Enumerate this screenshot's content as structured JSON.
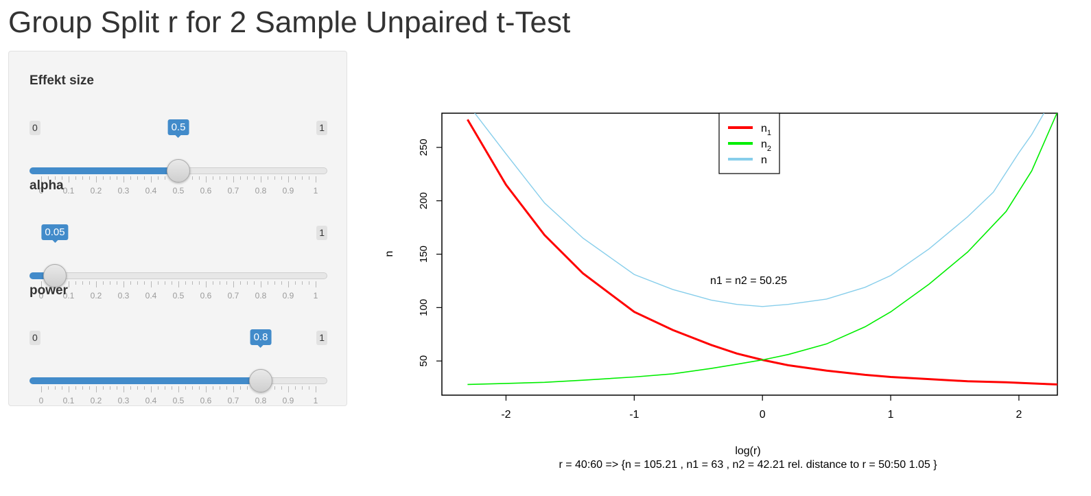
{
  "page": {
    "title": "Group Split r for 2 Sample Unpaired t-Test"
  },
  "sidebar": {
    "sliders": [
      {
        "id": "effekt",
        "label": "Effekt size",
        "min": "0",
        "max": "1",
        "value": 0.5,
        "value_label": "0.5",
        "show_min": true,
        "show_max": true
      },
      {
        "id": "alpha",
        "label": "alpha",
        "min": "0",
        "max": "1",
        "value": 0.05,
        "value_label": "0.05",
        "show_min": false,
        "show_max": true
      },
      {
        "id": "power",
        "label": "power",
        "min": "0",
        "max": "1",
        "value": 0.8,
        "value_label": "0.8",
        "show_min": true,
        "show_max": true
      }
    ],
    "tick_labels": [
      "0",
      "0.1",
      "0.2",
      "0.3",
      "0.4",
      "0.5",
      "0.6",
      "0.7",
      "0.8",
      "0.9",
      "1"
    ]
  },
  "plot": {
    "annotation": "n1 = n2 =  50.25",
    "caption": "r = 40:60 => {n =  105.21 , n1 =  63 , n2 =  42.21  rel. distance to r = 50:50  1.05 }",
    "legend_names": [
      "n",
      "n",
      "n"
    ],
    "legend_subscripts": [
      "1",
      "2",
      ""
    ]
  },
  "colors": {
    "n1": "#ff0000",
    "n2": "#00ee00",
    "n": "#87ceeb",
    "slider_accent": "#428bca"
  },
  "chart_data": {
    "type": "line",
    "xlabel": "log(r)",
    "ylabel": "n",
    "xlim": [
      -2.5,
      2.3
    ],
    "ylim": [
      18,
      282
    ],
    "xticks": [
      -2,
      -1,
      0,
      1,
      2
    ],
    "yticks": [
      50,
      100,
      150,
      200,
      250
    ],
    "legend_position": "top-center",
    "series": [
      {
        "name": "n1",
        "color": "#ff0000",
        "x": [
          -2.3,
          -2.0,
          -1.7,
          -1.4,
          -1.0,
          -0.7,
          -0.4,
          -0.2,
          0.0,
          0.2,
          0.5,
          0.8,
          1.0,
          1.3,
          1.6,
          1.9,
          2.1,
          2.3
        ],
        "y": [
          276,
          215,
          168,
          132,
          96,
          79,
          65,
          57,
          51,
          46,
          41,
          37,
          35,
          33,
          31,
          30,
          29,
          28
        ]
      },
      {
        "name": "n2",
        "color": "#00ee00",
        "x": [
          -2.3,
          -2.0,
          -1.7,
          -1.4,
          -1.0,
          -0.7,
          -0.4,
          -0.2,
          0.0,
          0.2,
          0.5,
          0.8,
          1.0,
          1.3,
          1.6,
          1.9,
          2.1,
          2.3
        ],
        "y": [
          28,
          29,
          30,
          32,
          35,
          38,
          43,
          47,
          51,
          56,
          66,
          82,
          96,
          122,
          152,
          190,
          228,
          283
        ]
      },
      {
        "name": "n",
        "color": "#87ceeb",
        "x": [
          -2.25,
          -2.0,
          -1.7,
          -1.4,
          -1.0,
          -0.7,
          -0.4,
          -0.2,
          0.0,
          0.2,
          0.5,
          0.8,
          1.0,
          1.3,
          1.6,
          1.8,
          2.0,
          2.1,
          2.2
        ],
        "y": [
          283,
          244,
          198,
          165,
          131,
          117,
          107,
          103,
          101,
          103,
          108,
          119,
          130,
          155,
          185,
          208,
          245,
          262,
          283
        ]
      }
    ]
  }
}
